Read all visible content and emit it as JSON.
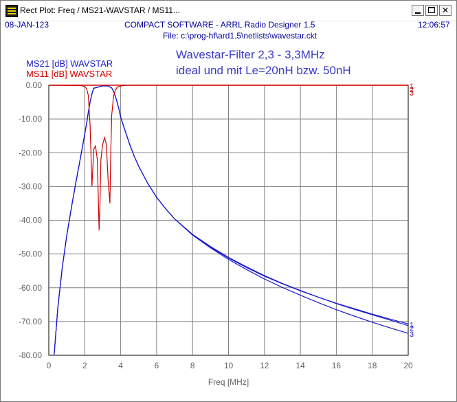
{
  "window": {
    "title": "Rect Plot: Freq / MS21-WAVSTAR / MS11...",
    "icon": "app-icon",
    "buttons": {
      "minimize": "minimize-icon",
      "maximize": "maximize-icon",
      "close": "✕"
    }
  },
  "header": {
    "date": "08-JAN-123",
    "program": "COMPACT SOFTWARE - ARRL Radio Designer 1.5",
    "time": "12:06:57",
    "file": "File: c:\\prog-hf\\ard1.5\\netlists\\wavestar.ckt"
  },
  "colors": {
    "header_text": "#0000a0",
    "ms21": "#1a1ad0",
    "ms11": "#d00000",
    "grid": "#808080",
    "ticks": "#606060",
    "title": "#3a3acd"
  },
  "chart_data": {
    "type": "line",
    "title_lines": [
      "Wavestar-Filter 2,3 - 3,3MHz",
      "ideal und mit Le=20nH bzw. 50nH"
    ],
    "xlabel": "Freq [MHz]",
    "ylabel": "",
    "xlim": [
      0,
      20
    ],
    "ylim": [
      -80,
      0
    ],
    "grid": true,
    "x_ticks": [
      "0",
      "2",
      "4",
      "6",
      "8",
      "10",
      "12",
      "14",
      "16",
      "18",
      "20"
    ],
    "y_ticks": [
      "0.00",
      "-10.00",
      "-20.00",
      "-30.00",
      "-40.00",
      "-50.00",
      "-60.00",
      "-70.00",
      "-80.00"
    ],
    "legend": [
      {
        "name": "MS21 [dB] WAVSTAR",
        "color": "#1a1ad0"
      },
      {
        "name": "MS11 [dB] WAVSTAR",
        "color": "#d00000"
      }
    ],
    "series": [
      {
        "name": "MS21 [dB] WAVSTAR",
        "label": "1",
        "color": "#1a1ad0",
        "x": [
          0.3,
          0.5,
          0.75,
          1.0,
          1.25,
          1.5,
          1.75,
          2.0,
          2.1,
          2.2,
          2.3,
          2.4,
          2.5,
          3.0,
          3.3,
          3.5,
          3.6,
          3.7,
          3.8,
          3.9,
          4.0,
          4.25,
          4.5,
          4.75,
          5.0,
          5.5,
          6.0,
          6.5,
          7.0,
          8.0,
          9.0,
          10.0,
          11.0,
          12.0,
          13.0,
          14.0,
          15.0,
          16.0,
          17.0,
          18.0,
          19.0,
          20.0
        ],
        "y": [
          -79.8,
          -66.0,
          -54.0,
          -44.5,
          -36.5,
          -29.0,
          -21.8,
          -14.5,
          -11.5,
          -8.0,
          -5.0,
          -2.5,
          -0.9,
          -0.2,
          -0.2,
          -0.8,
          -1.8,
          -3.2,
          -5.0,
          -7.0,
          -9.5,
          -13.5,
          -17.5,
          -21.0,
          -24.0,
          -29.0,
          -33.2,
          -36.6,
          -39.6,
          -44.3,
          -48.0,
          -51.2,
          -54.0,
          -56.6,
          -58.8,
          -60.9,
          -62.8,
          -64.6,
          -66.2,
          -67.8,
          -69.3,
          -70.7
        ]
      },
      {
        "name": "MS21 [dB] WAVSTAR",
        "label": "2",
        "color": "#1a1ad0",
        "x": [
          0.3,
          0.5,
          0.75,
          1.0,
          1.25,
          1.5,
          1.75,
          2.0,
          2.1,
          2.2,
          2.3,
          2.4,
          2.5,
          3.0,
          3.3,
          3.5,
          3.6,
          3.7,
          3.8,
          3.9,
          4.0,
          4.25,
          4.5,
          4.75,
          5.0,
          5.5,
          6.0,
          6.5,
          7.0,
          8.0,
          9.0,
          10.0,
          11.0,
          12.0,
          13.0,
          14.0,
          15.0,
          16.0,
          17.0,
          18.0,
          19.0,
          20.0
        ],
        "y": [
          -79.8,
          -66.0,
          -54.0,
          -44.5,
          -36.5,
          -29.0,
          -21.8,
          -14.5,
          -11.5,
          -8.0,
          -5.0,
          -2.5,
          -0.9,
          -0.2,
          -0.2,
          -0.8,
          -1.8,
          -3.2,
          -5.0,
          -7.0,
          -9.5,
          -13.5,
          -17.5,
          -21.0,
          -24.0,
          -29.0,
          -33.2,
          -36.6,
          -39.6,
          -44.2,
          -47.8,
          -51.0,
          -53.8,
          -56.4,
          -58.7,
          -60.8,
          -62.8,
          -64.7,
          -66.4,
          -68.0,
          -69.6,
          -71.2
        ]
      },
      {
        "name": "MS21 [dB] WAVSTAR",
        "label": "3",
        "color": "#1a1ad0",
        "x": [
          0.3,
          0.5,
          0.75,
          1.0,
          1.25,
          1.5,
          1.75,
          2.0,
          2.1,
          2.2,
          2.3,
          2.4,
          2.5,
          3.0,
          3.3,
          3.5,
          3.6,
          3.7,
          3.8,
          3.9,
          4.0,
          4.25,
          4.5,
          4.75,
          5.0,
          5.5,
          6.0,
          6.5,
          7.0,
          8.0,
          9.0,
          10.0,
          11.0,
          12.0,
          13.0,
          14.0,
          15.0,
          16.0,
          17.0,
          18.0,
          19.0,
          20.0
        ],
        "y": [
          -79.8,
          -66.0,
          -54.0,
          -44.5,
          -36.5,
          -29.0,
          -21.8,
          -14.5,
          -11.5,
          -8.0,
          -5.0,
          -2.5,
          -0.9,
          -0.2,
          -0.2,
          -0.8,
          -1.8,
          -3.2,
          -5.0,
          -7.0,
          -9.5,
          -13.5,
          -17.5,
          -21.0,
          -24.0,
          -29.0,
          -33.2,
          -36.6,
          -39.6,
          -44.4,
          -48.2,
          -51.6,
          -54.6,
          -57.4,
          -59.9,
          -62.2,
          -64.4,
          -66.5,
          -68.4,
          -70.2,
          -71.9,
          -73.5
        ]
      },
      {
        "name": "MS11 [dB] WAVSTAR",
        "label": "1",
        "color": "#d00000",
        "x": [
          0,
          1.8,
          2.0,
          2.1,
          2.2,
          2.3,
          2.4,
          2.5,
          2.6,
          2.7,
          2.8,
          2.85,
          2.9,
          3.0,
          3.1,
          3.2,
          3.3,
          3.4,
          3.45,
          3.5,
          3.6,
          3.7,
          3.8,
          4.0,
          4.3,
          5.0,
          20.0
        ],
        "y": [
          0,
          -0.1,
          -0.4,
          -1.0,
          -3.0,
          -12.0,
          -30.0,
          -19.0,
          -18.0,
          -22.0,
          -43.0,
          -35.0,
          -22.0,
          -17.5,
          -15.5,
          -17.5,
          -28.0,
          -35.0,
          -20.0,
          -9.0,
          -3.5,
          -1.5,
          -0.6,
          -0.2,
          -0.05,
          0,
          0
        ]
      },
      {
        "name": "MS11 [dB] WAVSTAR",
        "label": "2",
        "color": "#d00000",
        "x": [
          0,
          20.0
        ],
        "y": [
          0,
          0
        ]
      },
      {
        "name": "MS11 [dB] WAVSTAR",
        "label": "3",
        "color": "#d00000",
        "x": [
          0,
          20.0
        ],
        "y": [
          0,
          0
        ]
      }
    ]
  }
}
